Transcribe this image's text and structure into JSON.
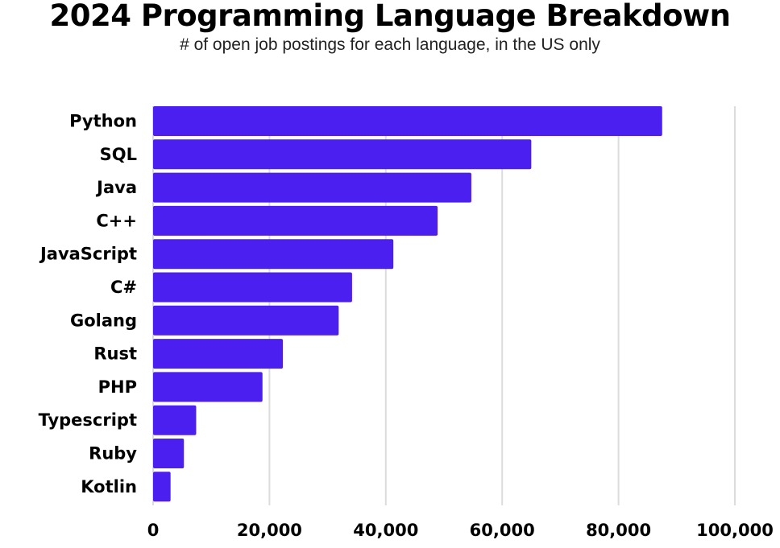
{
  "chart_data": {
    "type": "bar",
    "orientation": "horizontal",
    "title": "2024 Programming Language Breakdown",
    "subtitle": "# of open job postings for each language, in the US only",
    "categories": [
      "Python",
      "SQL",
      "Java",
      "C++",
      "JavaScript",
      "C#",
      "Golang",
      "Rust",
      "PHP",
      "Typescript",
      "Ruby",
      "Kotlin"
    ],
    "values": [
      87500,
      65000,
      54700,
      48900,
      41300,
      34200,
      31900,
      22300,
      18800,
      7400,
      5300,
      3000
    ],
    "xticks": [
      "0",
      "20,000",
      "40,000",
      "60,000",
      "80,000",
      "100,000"
    ],
    "xtick_values": [
      0,
      20000,
      40000,
      60000,
      80000,
      100000
    ],
    "xlim": [
      0,
      100000
    ],
    "grid": "vertical",
    "bar_color": "#4a1ff0",
    "grid_color": "#dcdcdc"
  }
}
